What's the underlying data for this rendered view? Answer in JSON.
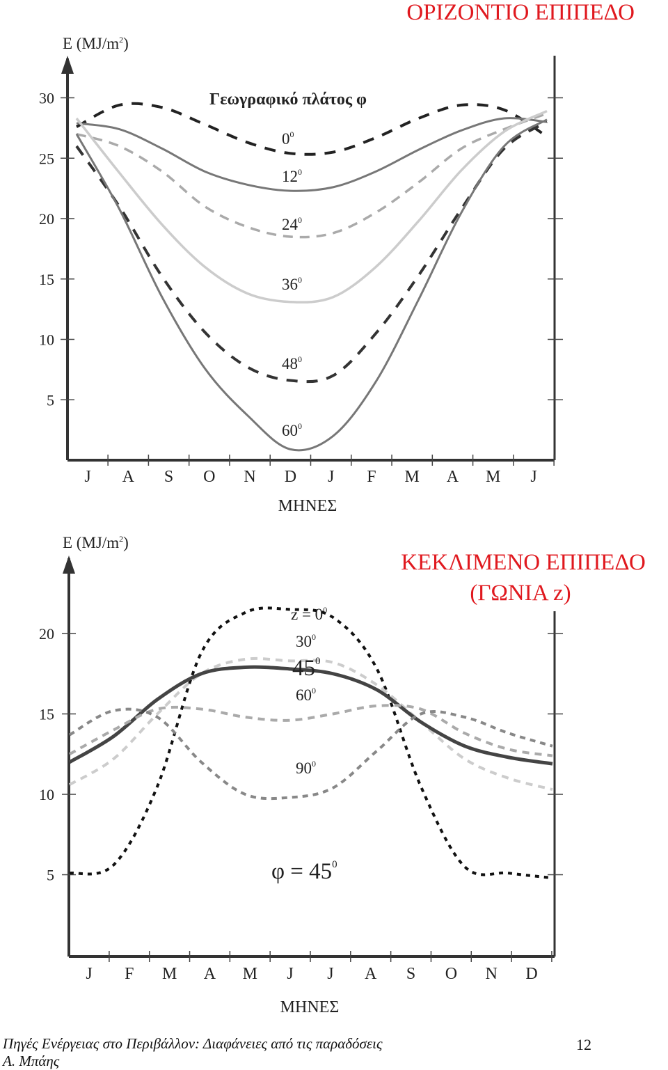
{
  "chart_data": [
    {
      "type": "line",
      "title": "ΟΡΙΖΟΝΤΙΟ ΕΠΙΠΕΔΟ",
      "subtitle": "Γεωγραφικό πλάτος φ",
      "ylabel_main": "E (MJ/m",
      "ylabel_sup": "2",
      "ylabel_tail": ")",
      "xlabel": "ΜΗΝΕΣ",
      "categories": [
        "J",
        "A",
        "S",
        "O",
        "N",
        "D",
        "J",
        "F",
        "M",
        "A",
        "M",
        "J"
      ],
      "yticks": [
        "30",
        "25",
        "20",
        "15",
        "10",
        "5"
      ],
      "ylim": [
        0,
        32
      ],
      "series": [
        {
          "name": "0",
          "sup": "0",
          "color": "#222222",
          "dash": "16 13",
          "width": 4,
          "values": [
            27.6,
            29.4,
            29.2,
            27.8,
            26.3,
            25.4,
            25.5,
            26.7,
            28.3,
            29.4,
            29.0,
            26.8
          ]
        },
        {
          "name": "12",
          "sup": "0",
          "color": "#777777",
          "dash": "",
          "width": 3,
          "values": [
            27.9,
            27.4,
            25.8,
            23.9,
            22.8,
            22.3,
            22.6,
            23.9,
            25.7,
            27.3,
            28.3,
            28.0
          ]
        },
        {
          "name": "24",
          "sup": "0",
          "color": "#aaaaaa",
          "dash": "14 10",
          "width": 3.5,
          "values": [
            27.0,
            26.0,
            23.9,
            21.0,
            19.3,
            18.5,
            18.8,
            20.5,
            23.0,
            25.8,
            27.4,
            28.7
          ]
        },
        {
          "name": "36",
          "sup": "0",
          "color": "#cccccc",
          "dash": "",
          "width": 3.5,
          "values": [
            28.3,
            23.8,
            19.5,
            16.0,
            13.8,
            13.1,
            13.5,
            16.0,
            19.8,
            24.0,
            27.2,
            28.9
          ]
        },
        {
          "name": "48",
          "sup": "0",
          "color": "#333333",
          "dash": "16 13",
          "width": 4,
          "values": [
            26.0,
            21.0,
            15.2,
            10.6,
            7.7,
            6.6,
            7.0,
            10.5,
            15.3,
            20.8,
            25.8,
            28.0
          ]
        },
        {
          "name": "60",
          "sup": "0",
          "color": "#777777",
          "dash": "",
          "width": 3,
          "values": [
            27.0,
            20.8,
            13.5,
            7.6,
            3.7,
            0.9,
            2.0,
            6.5,
            13.3,
            20.5,
            26.0,
            28.2
          ]
        }
      ]
    },
    {
      "type": "line",
      "title_line1": "ΚΕΚΛΙΜΕΝΟ ΕΠΙΠΕΔΟ",
      "title_line2": "(ΓΩΝΙΑ z)",
      "annotation": "φ = 45",
      "annotation_sup": "0",
      "ylabel_main": "E (MJ/m",
      "ylabel_sup": "2",
      "ylabel_tail": ")",
      "xlabel": "ΜΗΝΕΣ",
      "categories": [
        "J",
        "F",
        "M",
        "A",
        "M",
        "J",
        "J",
        "A",
        "S",
        "O",
        "N",
        "D"
      ],
      "yticks": [
        "20",
        "15",
        "10",
        "5"
      ],
      "ylim": [
        0,
        23
      ],
      "series": [
        {
          "name": "z = 0",
          "sup": "0",
          "color": "#111111",
          "dash": "6 7",
          "width": 4,
          "values": [
            5.1,
            5.6,
            10.5,
            18.8,
            21.3,
            21.5,
            21.0,
            17.8,
            10.5,
            5.5,
            5.1,
            4.8
          ]
        },
        {
          "name": "30",
          "sup": "0",
          "color": "#cccccc",
          "dash": "10 8",
          "width": 4,
          "values": [
            10.6,
            12.2,
            15.0,
            17.5,
            18.4,
            18.3,
            18.2,
            16.8,
            14.5,
            12.2,
            11.0,
            10.3
          ]
        },
        {
          "name": "45",
          "sup": "0",
          "color": "#444444",
          "dash": "",
          "width": 5,
          "values": [
            12.0,
            13.6,
            15.9,
            17.5,
            17.9,
            17.8,
            17.5,
            16.5,
            14.5,
            13.0,
            12.3,
            11.9
          ]
        },
        {
          "name": "60",
          "sup": "0",
          "color": "#aaaaaa",
          "dash": "10 8",
          "width": 4,
          "values": [
            12.5,
            14.0,
            15.3,
            15.3,
            14.8,
            14.6,
            15.0,
            15.5,
            15.3,
            13.8,
            12.8,
            12.4
          ]
        },
        {
          "name": "90",
          "sup": "0",
          "color": "#888888",
          "dash": "8 7",
          "width": 4,
          "values": [
            13.7,
            15.2,
            14.8,
            12.0,
            10.0,
            9.8,
            10.4,
            12.7,
            15.0,
            14.8,
            13.8,
            13.0
          ]
        }
      ]
    }
  ],
  "footer": {
    "line1": "Πηγές Ενέργειας στο Περιβάλλον: Διαφάνειες από τις παραδόσεις",
    "line2": "Α. Μπάης",
    "page": "12"
  }
}
